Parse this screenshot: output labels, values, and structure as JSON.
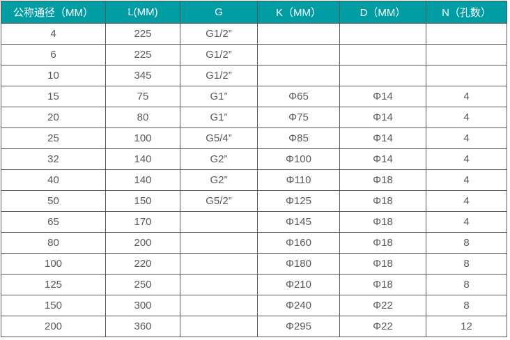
{
  "colors": {
    "header_bg": "#009DA5",
    "header_text": "#FFFFFF",
    "cell_text": "#595959",
    "border": "#595959",
    "row_bg": "#FFFFFF"
  },
  "chart_data": {
    "type": "table",
    "title": "",
    "columns": [
      "公称通径（MM）",
      "L(MM)",
      "G",
      "K（MM）",
      "D（MM）",
      "N（孔数）"
    ],
    "rows": [
      [
        "4",
        "225",
        "G1/2”",
        "",
        "",
        ""
      ],
      [
        "6",
        "225",
        "G1/2”",
        "",
        "",
        ""
      ],
      [
        "10",
        "345",
        "G1/2”",
        "",
        "",
        ""
      ],
      [
        "15",
        "75",
        "G1”",
        "Φ65",
        "Φ14",
        "4"
      ],
      [
        "20",
        "80",
        "G1”",
        "Φ75",
        "Φ14",
        "4"
      ],
      [
        "25",
        "100",
        "G5/4”",
        "Φ85",
        "Φ14",
        "4"
      ],
      [
        "32",
        "140",
        "G2”",
        "Φ100",
        "Φ14",
        "4"
      ],
      [
        "40",
        "140",
        "G2”",
        "Φ110",
        "Φ18",
        "4"
      ],
      [
        "50",
        "150",
        "G5/2”",
        "Φ125",
        "Φ18",
        "4"
      ],
      [
        "65",
        "170",
        "",
        "Φ145",
        "Φ18",
        "4"
      ],
      [
        "80",
        "200",
        "",
        "Φ160",
        "Φ18",
        "8"
      ],
      [
        "100",
        "220",
        "",
        "Φ180",
        "Φ18",
        "8"
      ],
      [
        "125",
        "250",
        "",
        "Φ210",
        "Φ18",
        "8"
      ],
      [
        "150",
        "300",
        "",
        "Φ240",
        "Φ22",
        "8"
      ],
      [
        "200",
        "360",
        "",
        "Φ295",
        "Φ22",
        "12"
      ]
    ]
  }
}
